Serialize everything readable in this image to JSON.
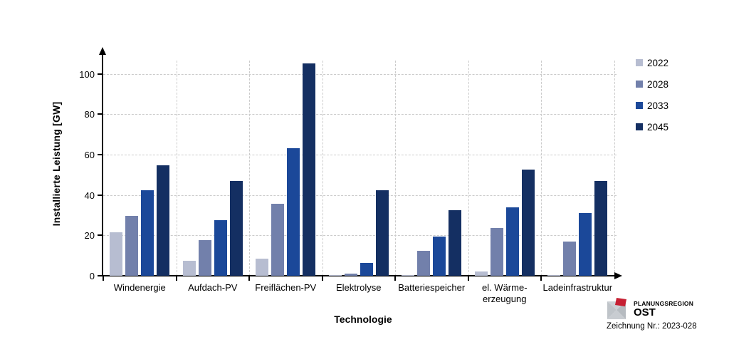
{
  "chart_data": {
    "type": "bar",
    "title": "",
    "xlabel": "Technologie",
    "ylabel": "Installierte Leistung [GW]",
    "ylim": [
      0,
      110
    ],
    "yticks": [
      0,
      20,
      40,
      60,
      80,
      100
    ],
    "grid": true,
    "legend_position": "top-right",
    "categories": [
      "Windenergie",
      "Aufdach-PV",
      "Freiflächen-PV",
      "Elektrolyse",
      "Batteriespeicher",
      "el. Wärme-\nerzeugung",
      "Ladeinfrastruktur"
    ],
    "series": [
      {
        "name": "2022",
        "color": "#b7bdd1",
        "values": [
          21.5,
          7.5,
          8.5,
          0.2,
          0.5,
          2,
          0.3
        ]
      },
      {
        "name": "2028",
        "color": "#7280ab",
        "values": [
          29.5,
          17.5,
          35.5,
          1,
          12.5,
          23.5,
          17
        ]
      },
      {
        "name": "2033",
        "color": "#1b4899",
        "values": [
          42.5,
          27.5,
          63,
          6.5,
          19.5,
          34,
          31
        ]
      },
      {
        "name": "2045",
        "color": "#142f62",
        "values": [
          54.5,
          47,
          105,
          42.5,
          32.5,
          52.5,
          47
        ]
      }
    ]
  },
  "branding": {
    "org_small": "PLANUNGSREGION",
    "org_big": "OST",
    "drawing_no": "Zeichnung Nr.: 2023-028",
    "logo_gray": "#c3c8cd",
    "logo_red": "#c62033"
  }
}
